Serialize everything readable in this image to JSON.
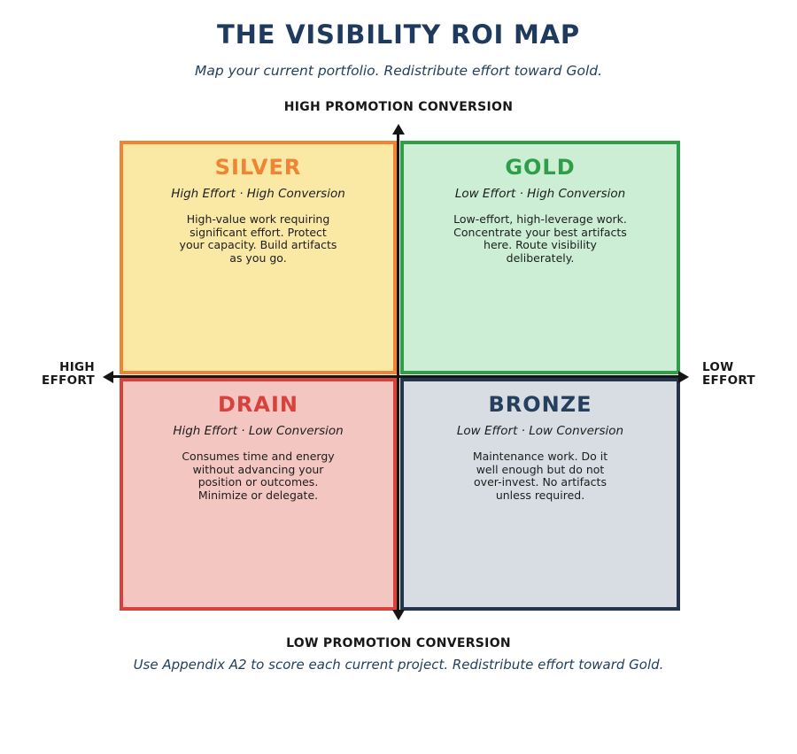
{
  "page": {
    "title": "THE VISIBILITY ROI MAP",
    "subtitle": "Map your current portfolio. Redistribute effort toward Gold.",
    "footnote": "Use Appendix A2 to score each current project. Redistribute effort toward Gold."
  },
  "axes": {
    "top": "HIGH PROMOTION CONVERSION",
    "bottom": "LOW PROMOTION CONVERSION",
    "left": "HIGH\nEFFORT",
    "right": "LOW\nEFFORT"
  },
  "quadrants": {
    "silver": {
      "title": "SILVER",
      "subtitle": "High Effort · High Conversion",
      "body": "High-value work requiring\nsignificant effort. Protect\nyour capacity. Build artifacts\nas you go.",
      "accent": "#ee8434",
      "background": "#fae8a5"
    },
    "gold": {
      "title": "GOLD",
      "subtitle": "Low Effort · High Conversion",
      "body": "Low-effort, high-leverage work.\nConcentrate your best artifacts\nhere. Route visibility\ndeliberately.",
      "accent": "#2e9e48",
      "background": "#cbeed5"
    },
    "drain": {
      "title": "DRAIN",
      "subtitle": "High Effort · Low Conversion",
      "body": "Consumes time and energy\nwithout advancing your\nposition or outcomes.\nMinimize or delegate.",
      "accent": "#d8423c",
      "background": "#f4c6c2"
    },
    "bronze": {
      "title": "BRONZE",
      "subtitle": "Low Effort · Low Conversion",
      "body": "Maintenance work. Do it\nwell enough but do not\nover-invest. No artifacts\nunless required.",
      "accent": "#24344a",
      "title_color": "#24405e",
      "background": "#d8dde3"
    }
  },
  "colors": {
    "heading": "#1e3a5f",
    "axis": "#151515"
  }
}
